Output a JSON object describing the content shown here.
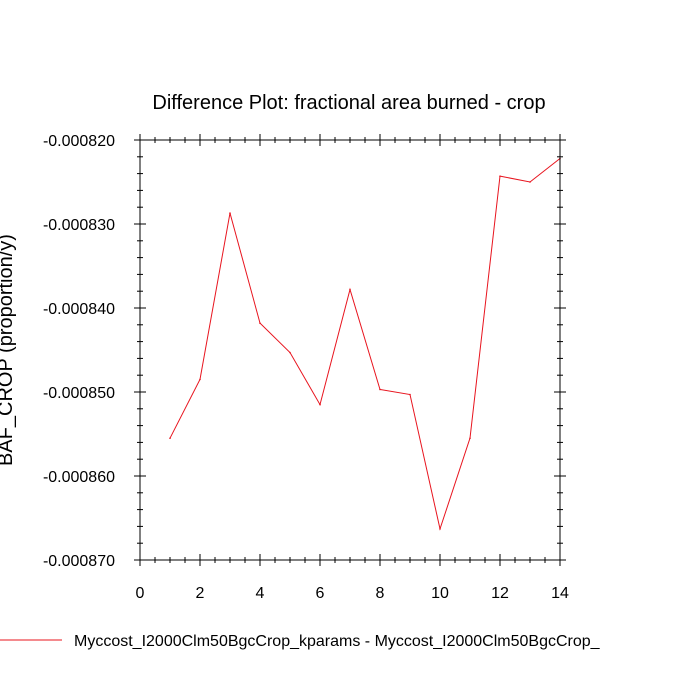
{
  "chart_data": {
    "type": "line",
    "title": "Difference Plot: fractional area burned - crop",
    "xlabel": "",
    "ylabel": "BAF_CROP  (proportion/y)",
    "xlim": [
      0,
      14
    ],
    "ylim": [
      -0.00087,
      -0.00082
    ],
    "x_ticks": [
      0,
      2,
      4,
      6,
      8,
      10,
      12,
      14
    ],
    "x_tick_labels": [
      "0",
      "2",
      "4",
      "6",
      "8",
      "10",
      "12",
      "14"
    ],
    "y_ticks": [
      -0.00082,
      -0.00083,
      -0.00084,
      -0.00085,
      -0.00086,
      -0.00087
    ],
    "y_tick_labels": [
      "-0.000820",
      "-0.000830",
      "-0.000840",
      "-0.000850",
      "-0.000860",
      "-0.000870"
    ],
    "grid": false,
    "legend_position": "bottom",
    "series": [
      {
        "name": "Myccost_I2000Clm50BgcCrop_kparams - Myccost_I2000Clm50BgcCrop_",
        "color": "#e8141e",
        "x": [
          1,
          2,
          3,
          4,
          5,
          6,
          7,
          8,
          9,
          10,
          11,
          12,
          13,
          14
        ],
        "y": [
          -0.0008555,
          -0.0008485,
          -0.0008287,
          -0.0008418,
          -0.0008453,
          -0.0008515,
          -0.0008378,
          -0.0008497,
          -0.0008503,
          -0.0008663,
          -0.0008555,
          -0.0008243,
          -0.000825,
          -0.0008222
        ]
      }
    ]
  }
}
